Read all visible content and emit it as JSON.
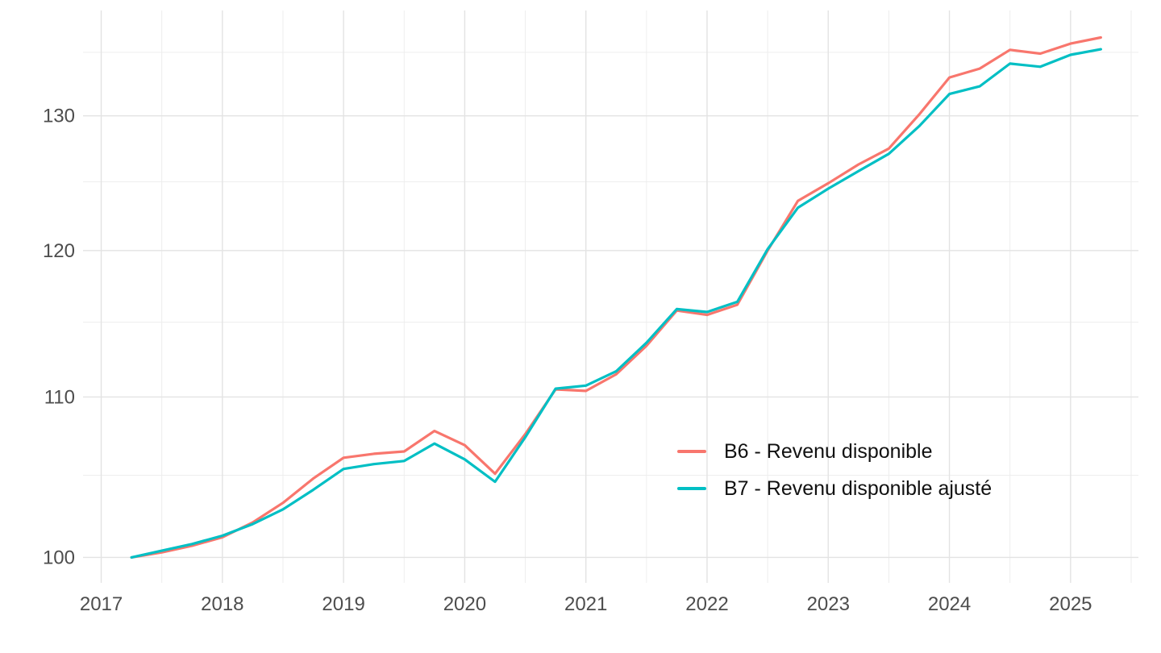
{
  "chart_data": {
    "type": "line",
    "title": "",
    "xlabel": "",
    "ylabel": "",
    "y_scale": "log",
    "grid": true,
    "legend_position": "inside-right-lower",
    "background_color": "#ffffff",
    "major_grid_color": "#e3e3e3",
    "minor_grid_color": "#ececec",
    "axis_label_color": "#4d4d4d",
    "xlim": [
      2016.85,
      2025.56
    ],
    "ylim": [
      98.5,
      138.4
    ],
    "x": [
      2017.25,
      2017.5,
      2017.75,
      2018.0,
      2018.25,
      2018.5,
      2018.75,
      2019.0,
      2019.25,
      2019.5,
      2019.75,
      2020.0,
      2020.25,
      2020.5,
      2020.75,
      2021.0,
      2021.25,
      2021.5,
      2021.75,
      2022.0,
      2022.25,
      2022.5,
      2022.75,
      2023.0,
      2023.25,
      2023.5,
      2023.75,
      2024.0,
      2024.25,
      2024.5,
      2024.75,
      2025.0,
      2025.25
    ],
    "series": [
      {
        "name": "B6 - Revenu disponible",
        "color": "#F8766D",
        "values": [
          100.0,
          100.3,
          100.7,
          101.2,
          102.1,
          103.3,
          104.8,
          106.1,
          106.35,
          106.5,
          107.8,
          106.9,
          105.1,
          107.6,
          110.5,
          110.4,
          111.5,
          113.4,
          115.8,
          115.5,
          116.2,
          120.0,
          123.6,
          124.9,
          126.3,
          127.5,
          130.1,
          133.0,
          133.7,
          135.2,
          134.9,
          135.7,
          136.2
        ]
      },
      {
        "name": "B7 - Revenu disponible ajusté",
        "color": "#00BFC4",
        "values": [
          100.0,
          100.4,
          100.8,
          101.3,
          102.0,
          102.9,
          104.1,
          105.4,
          105.7,
          105.9,
          107.0,
          106.0,
          104.6,
          107.4,
          110.55,
          110.75,
          111.7,
          113.6,
          115.9,
          115.7,
          116.4,
          120.1,
          123.1,
          124.5,
          125.8,
          127.1,
          129.2,
          131.7,
          132.3,
          134.1,
          133.85,
          134.8,
          135.25
        ]
      }
    ],
    "x_ticks": {
      "values": [
        2017,
        2018,
        2019,
        2020,
        2021,
        2022,
        2023,
        2024,
        2025
      ],
      "labels": [
        "2017",
        "2018",
        "2019",
        "2020",
        "2021",
        "2022",
        "2023",
        "2024",
        "2025"
      ]
    },
    "x_minor_ticks": [
      2017.5,
      2018.5,
      2019.5,
      2020.5,
      2021.5,
      2022.5,
      2023.5,
      2024.5,
      2025.5
    ],
    "y_ticks": {
      "values": [
        100,
        110,
        120,
        130
      ],
      "labels": [
        "100",
        "110",
        "120",
        "130"
      ]
    },
    "y_minor_ticks": [
      105,
      115,
      125,
      135
    ]
  }
}
